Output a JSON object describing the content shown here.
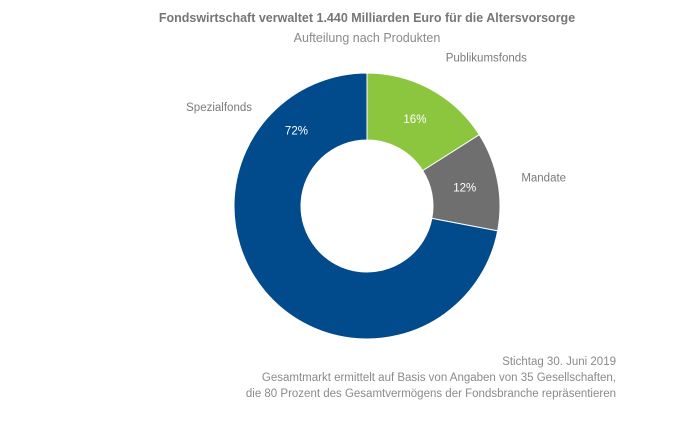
{
  "chart_data": {
    "type": "pie",
    "donut": true,
    "title": "Fondswirtschaft verwaltet 1.440 Milliarden Euro für die Altersvorsorge",
    "subtitle": "Aufteilung nach Produkten",
    "slices": [
      {
        "name": "Publikumsfonds",
        "value": 16,
        "label": "16%",
        "color": "#8cc63f"
      },
      {
        "name": "Mandate",
        "value": 12,
        "label": "12%",
        "color": "#6f6f6f"
      },
      {
        "name": "Spezialfonds",
        "value": 72,
        "label": "72%",
        "color": "#014b8d"
      }
    ]
  },
  "footer": {
    "date": "Stichtag 30. Juni 2019",
    "note1": "Gesamtmarkt ermittelt auf Basis von Angaben von 35 Gesellschaften,",
    "note2": "die 80 Prozent des Gesamtvermögens der Fondsbranche repräsentieren"
  }
}
